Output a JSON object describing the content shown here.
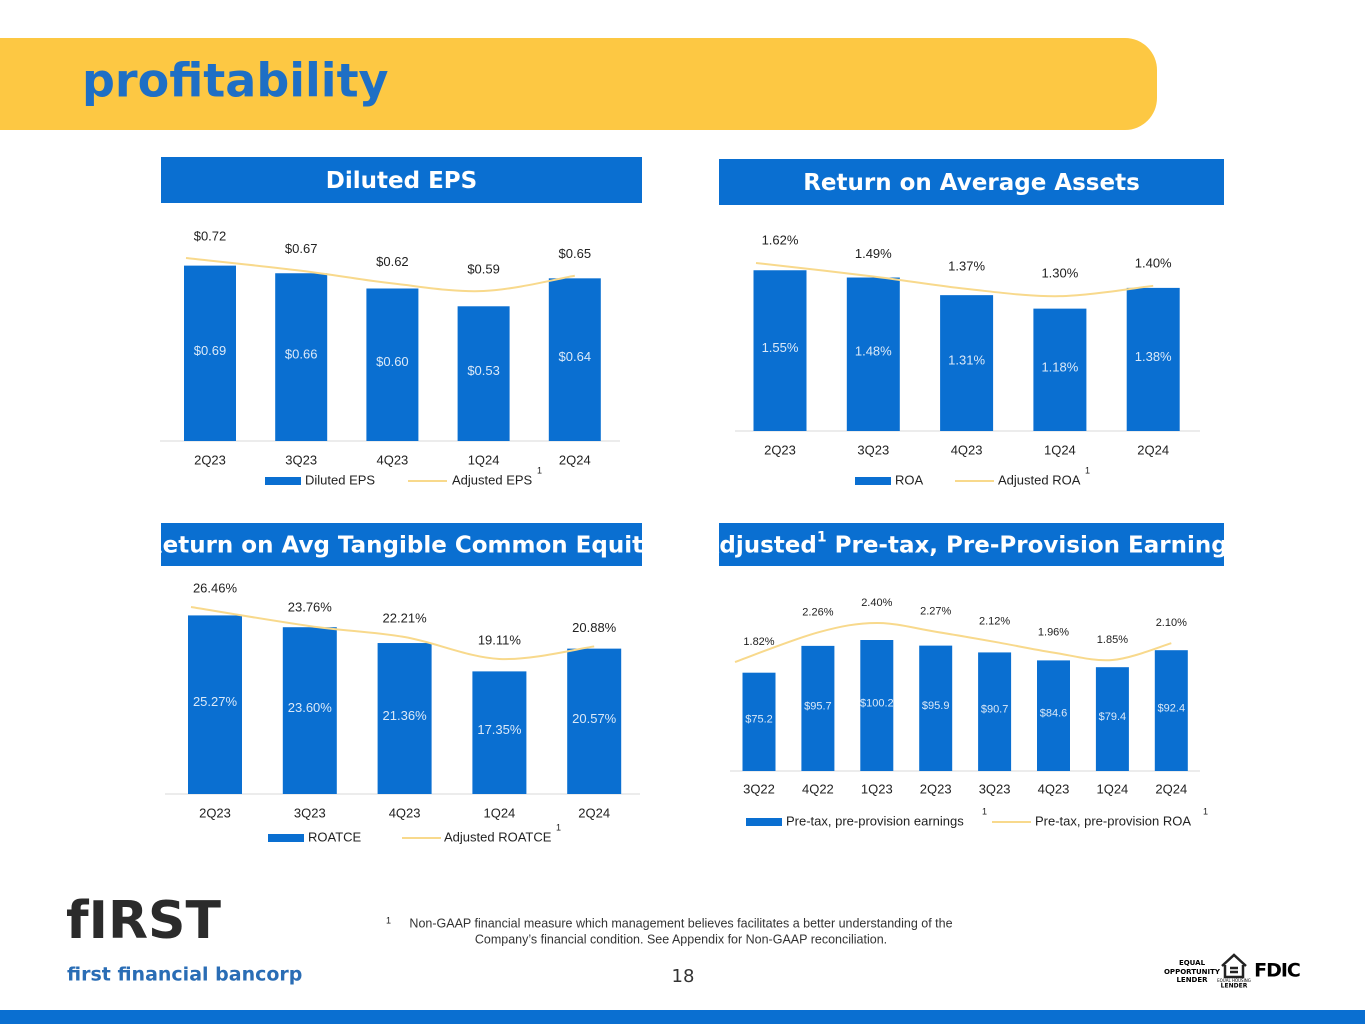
{
  "page": {
    "title": "profitability",
    "page_number": "18",
    "footnote_marker": "1",
    "footnote_lines": [
      "Non-GAAP financial measure which management believes facilitates a better understanding of the",
      "Company’s financial condition.  See Appendix for Non-GAAP reconciliation."
    ],
    "logo": "fIRST",
    "logo_subtitle": "first financial bancorp",
    "badges": [
      "EQUAL",
      "OPPORTUNITY",
      "LENDER",
      "EQUAL HOUSING",
      "LENDER",
      "FDIC"
    ]
  },
  "chart_data": [
    {
      "type": "bar",
      "title": "Diluted EPS",
      "categories": [
        "2Q23",
        "3Q23",
        "4Q23",
        "1Q24",
        "2Q24"
      ],
      "series": [
        {
          "name": "Diluted EPS",
          "type": "bar",
          "color": "#0a6fd1",
          "values": [
            0.69,
            0.66,
            0.6,
            0.53,
            0.64
          ],
          "value_labels": [
            "$0.69",
            "$0.66",
            "$0.60",
            "$0.53",
            "$0.64"
          ]
        },
        {
          "name": "Adjusted EPS",
          "footnote": "1",
          "type": "line",
          "color": "#f8d98c",
          "values": [
            0.72,
            0.67,
            0.62,
            0.59,
            0.65
          ],
          "value_labels": [
            "$0.72",
            "$0.67",
            "$0.62",
            "$0.59",
            "$0.65"
          ]
        }
      ]
    },
    {
      "type": "bar",
      "title": "Return on Average Assets",
      "categories": [
        "2Q23",
        "3Q23",
        "4Q23",
        "1Q24",
        "2Q24"
      ],
      "series": [
        {
          "name": "ROA",
          "type": "bar",
          "color": "#0a6fd1",
          "values": [
            1.55,
            1.48,
            1.31,
            1.18,
            1.38
          ],
          "value_labels": [
            "1.55%",
            "1.48%",
            "1.31%",
            "1.18%",
            "1.38%"
          ]
        },
        {
          "name": "Adjusted ROA",
          "footnote": "1",
          "type": "line",
          "color": "#f8d98c",
          "values": [
            1.62,
            1.49,
            1.37,
            1.3,
            1.4
          ],
          "value_labels": [
            "1.62%",
            "1.49%",
            "1.37%",
            "1.30%",
            "1.40%"
          ]
        }
      ]
    },
    {
      "type": "bar",
      "title": "Return on Avg Tangible Common Equity",
      "categories": [
        "2Q23",
        "3Q23",
        "4Q23",
        "1Q24",
        "2Q24"
      ],
      "series": [
        {
          "name": "ROATCE",
          "type": "bar",
          "color": "#0a6fd1",
          "values": [
            25.27,
            23.6,
            21.36,
            17.35,
            20.57
          ],
          "value_labels": [
            "25.27%",
            "23.60%",
            "21.36%",
            "17.35%",
            "20.57%"
          ]
        },
        {
          "name": "Adjusted ROATCE",
          "footnote": "1",
          "type": "line",
          "color": "#f8d98c",
          "values": [
            26.46,
            23.76,
            22.21,
            19.11,
            20.88
          ],
          "value_labels": [
            "26.46%",
            "23.76%",
            "22.21%",
            "19.11%",
            "20.88%"
          ]
        }
      ]
    },
    {
      "type": "bar",
      "title": "Adjusted",
      "title_sup": "1",
      "title_rest": " Pre-tax, Pre-Provision Earnings",
      "categories": [
        "3Q22",
        "4Q22",
        "1Q23",
        "2Q23",
        "3Q23",
        "4Q23",
        "1Q24",
        "2Q24"
      ],
      "series": [
        {
          "name": "Pre-tax, pre-provision earnings",
          "footnote": "1",
          "type": "bar",
          "color": "#0a6fd1",
          "values": [
            75.2,
            95.7,
            100.2,
            95.9,
            90.7,
            84.6,
            79.4,
            92.4
          ],
          "value_labels": [
            "$75.2",
            "$95.7",
            "$100.2",
            "$95.9",
            "$90.7",
            "$84.6",
            "$79.4",
            "$92.4"
          ]
        },
        {
          "name": "Pre-tax, pre-provision ROA",
          "footnote": "1",
          "type": "line",
          "axis": "y2",
          "color": "#f8d98c",
          "values": [
            1.82,
            2.26,
            2.4,
            2.27,
            2.12,
            1.96,
            1.85,
            2.1
          ],
          "value_labels": [
            "1.82%",
            "2.26%",
            "2.40%",
            "2.27%",
            "2.12%",
            "1.96%",
            "1.85%",
            "2.10%"
          ]
        }
      ]
    }
  ]
}
